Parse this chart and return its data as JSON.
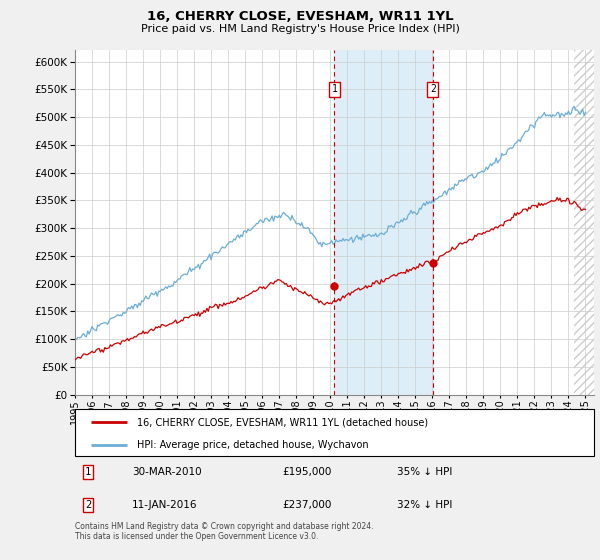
{
  "title": "16, CHERRY CLOSE, EVESHAM, WR11 1YL",
  "subtitle": "Price paid vs. HM Land Registry's House Price Index (HPI)",
  "ylim": [
    0,
    620000
  ],
  "ytick_values": [
    0,
    50000,
    100000,
    150000,
    200000,
    250000,
    300000,
    350000,
    400000,
    450000,
    500000,
    550000,
    600000
  ],
  "xlim_start": 1995.0,
  "xlim_end": 2025.5,
  "xtick_years": [
    1995,
    1996,
    1997,
    1998,
    1999,
    2000,
    2001,
    2002,
    2003,
    2004,
    2005,
    2006,
    2007,
    2008,
    2009,
    2010,
    2011,
    2012,
    2013,
    2014,
    2015,
    2016,
    2017,
    2018,
    2019,
    2020,
    2021,
    2022,
    2023,
    2024,
    2025
  ],
  "hpi_color": "#6baed6",
  "price_color": "#cc0000",
  "marker1_year": 2010.24,
  "marker1_price": 195000,
  "marker1_label": "1",
  "marker1_date": "30-MAR-2010",
  "marker1_pct": "35% ↓ HPI",
  "marker2_year": 2016.03,
  "marker2_price": 237000,
  "marker2_label": "2",
  "marker2_date": "11-JAN-2016",
  "marker2_pct": "32% ↓ HPI",
  "legend_property": "16, CHERRY CLOSE, EVESHAM, WR11 1YL (detached house)",
  "legend_hpi": "HPI: Average price, detached house, Wychavon",
  "footnote": "Contains HM Land Registry data © Crown copyright and database right 2024.\nThis data is licensed under the Open Government Licence v3.0.",
  "shaded_region_color": "#ddeef8",
  "vline_color": "#cc0000",
  "background_color": "#f0f0f0",
  "plot_bg_color": "#ffffff",
  "hatch_start": 2024.33
}
